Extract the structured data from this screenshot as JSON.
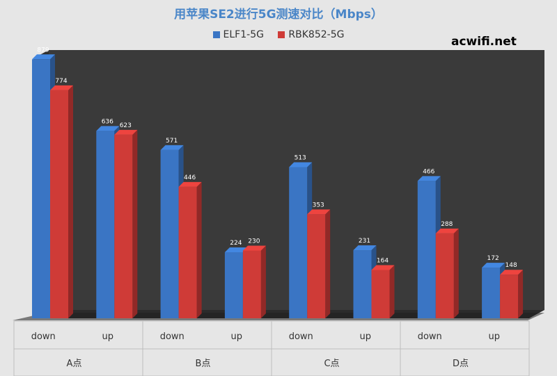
{
  "watermark": "acwifi.net",
  "colors": {
    "series1": "#3a75c4",
    "series2": "#cf3b37",
    "plot_bg": "#3a3a3a",
    "floor": "#2b2b2b",
    "page_bg": "#e6e6e6",
    "title": "#4a86c8"
  },
  "chart_data": {
    "type": "bar",
    "title": "用苹果SE2进行5G测速对比（Mbps）",
    "legend_position": "top",
    "grid": false,
    "ylim": [
      0,
      1000
    ],
    "groups": [
      "A点",
      "B点",
      "C点",
      "D点"
    ],
    "categories": [
      "down",
      "up",
      "down",
      "up",
      "down",
      "up",
      "down",
      "up"
    ],
    "series": [
      {
        "name": "ELF1-5G",
        "values": [
          879,
          636,
          571,
          224,
          513,
          231,
          466,
          172
        ]
      },
      {
        "name": "RBK852-5G",
        "values": [
          774,
          623,
          446,
          230,
          353,
          164,
          288,
          148
        ]
      }
    ]
  }
}
